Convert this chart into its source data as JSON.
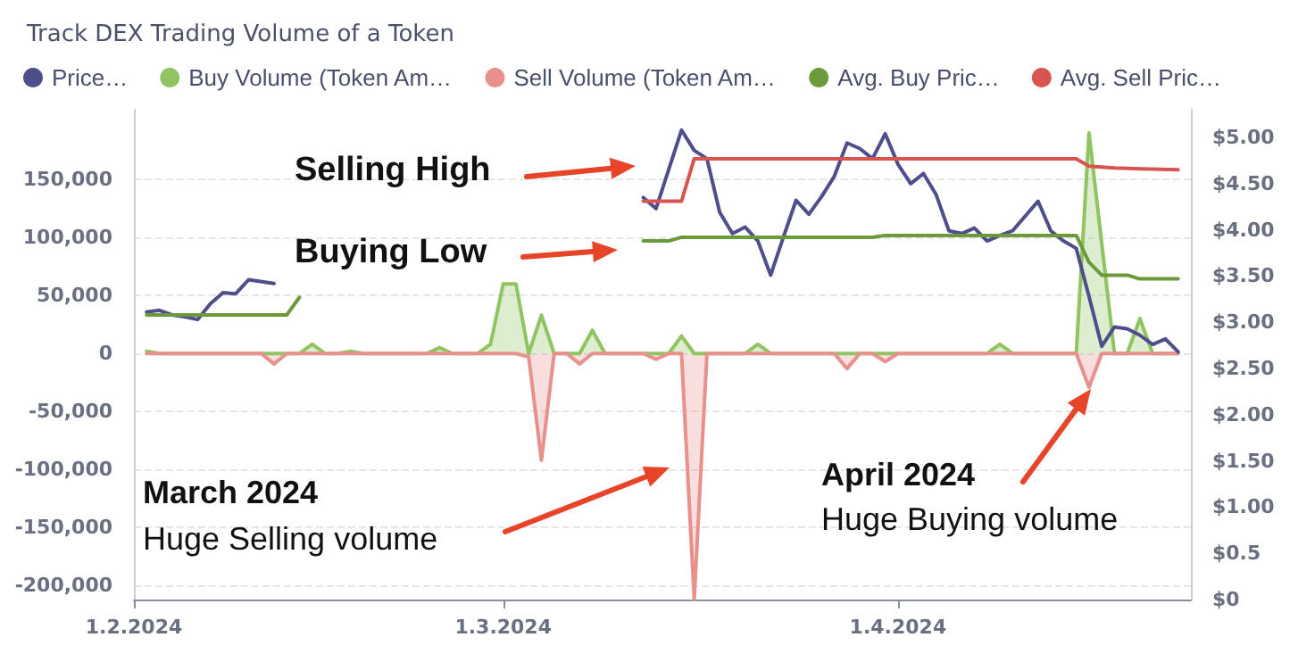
{
  "chart_data": {
    "type": "line",
    "title": "Track DEX Trading Volume of a Token",
    "xlim": [
      "2024-02-01",
      "2024-04-24"
    ],
    "xticks": [
      {
        "value": "2024-02-01",
        "label": "1.2.2024"
      },
      {
        "value": "2024-03-01",
        "label": "1.3.2024"
      },
      {
        "value": "2024-04-01",
        "label": "1.4.2024"
      }
    ],
    "ylim": [
      -212000,
      210000
    ],
    "yticks": [
      {
        "value": -200000,
        "label": "-200,000"
      },
      {
        "value": -150000,
        "label": "-150,000"
      },
      {
        "value": -100000,
        "label": "-100,000"
      },
      {
        "value": -50000,
        "label": "-50,000"
      },
      0,
      {
        "value": 50000,
        "label": "50,000"
      },
      {
        "value": 100000,
        "label": "100,000"
      },
      {
        "value": 150000,
        "label": "150,000"
      }
    ],
    "y2lim": [
      0,
      5.3
    ],
    "y2ticks": [
      {
        "value": 0,
        "label": "$0"
      },
      {
        "value": 0.5,
        "label": "$0.5"
      },
      {
        "value": 1,
        "label": "$1.00"
      },
      {
        "value": 1.5,
        "label": "$1.50"
      },
      {
        "value": 2,
        "label": "$2.00"
      },
      {
        "value": 2.5,
        "label": "$2.50"
      },
      {
        "value": 3,
        "label": "$3.00"
      },
      {
        "value": 3.5,
        "label": "$3.50"
      },
      {
        "value": 4,
        "label": "$4.00"
      },
      {
        "value": 4.5,
        "label": "$4.50"
      },
      {
        "value": 5,
        "label": "$5.00"
      }
    ],
    "grid": "y",
    "legend": "top left",
    "marker": "none",
    "line_style": "solid",
    "annotations": [
      "Selling High",
      "Buying Low",
      "March 2024",
      "Huge Selling volume",
      "April 2024",
      "Huge Buying volume"
    ],
    "series": [
      {
        "name": "Price…",
        "type": "line",
        "axis": "y2",
        "color": "#4e4e8c",
        "x": [
          "2024-02-02",
          "2024-02-03",
          "2024-02-04",
          "2024-02-05",
          "2024-02-06",
          "2024-02-07",
          "2024-02-08",
          "2024-02-09",
          "2024-02-10",
          "2024-02-12",
          "2024-02-20",
          "2024-03-12",
          "2024-03-13",
          "2024-03-15",
          "2024-03-16",
          "2024-03-17",
          "2024-03-18",
          "2024-03-19",
          "2024-03-20",
          "2024-03-21",
          "2024-03-22",
          "2024-03-23",
          "2024-03-24",
          "2024-03-25",
          "2024-03-26",
          "2024-03-27",
          "2024-03-28",
          "2024-03-29",
          "2024-03-30",
          "2024-03-31",
          "2024-04-01",
          "2024-04-02",
          "2024-04-03",
          "2024-04-04",
          "2024-04-05",
          "2024-04-06",
          "2024-04-07",
          "2024-04-08",
          "2024-04-09",
          "2024-04-10",
          "2024-04-12",
          "2024-04-13",
          "2024-04-14",
          "2024-04-15",
          "2024-04-16",
          "2024-04-17",
          "2024-04-18",
          "2024-04-19",
          "2024-04-20",
          "2024-04-21",
          "2024-04-22",
          "2024-04-23"
        ],
        "values": [
          3.11,
          3.13,
          3.08,
          3.06,
          3.03,
          3.2,
          3.32,
          3.31,
          3.46,
          3.42,
          null,
          4.35,
          4.23,
          5.08,
          4.86,
          4.77,
          4.19,
          3.96,
          4.03,
          3.88,
          3.51,
          3.92,
          4.32,
          4.17,
          4.36,
          4.58,
          4.94,
          4.88,
          4.77,
          5.04,
          4.71,
          4.5,
          4.61,
          4.38,
          3.99,
          3.96,
          4.02,
          3.88,
          3.94,
          3.99,
          4.31,
          3.99,
          3.88,
          3.8,
          3.28,
          2.74,
          2.95,
          2.93,
          2.86,
          2.76,
          2.82,
          2.68
        ]
      },
      {
        "name": "Buy Volume (Token Am…",
        "type": "area",
        "color": "#8fc461",
        "x": [
          "2024-02-02",
          "2024-02-03",
          "2024-02-14",
          "2024-02-15",
          "2024-02-16",
          "2024-02-17",
          "2024-02-18",
          "2024-02-19",
          "2024-02-24",
          "2024-02-25",
          "2024-02-26",
          "2024-02-28",
          "2024-02-29",
          "2024-03-01",
          "2024-03-02",
          "2024-03-03",
          "2024-03-04",
          "2024-03-05",
          "2024-03-07",
          "2024-03-08",
          "2024-03-09",
          "2024-03-14",
          "2024-03-15",
          "2024-03-16",
          "2024-03-20",
          "2024-03-21",
          "2024-03-22",
          "2024-04-08",
          "2024-04-09",
          "2024-04-10",
          "2024-04-15",
          "2024-04-16",
          "2024-04-17",
          "2024-04-18",
          "2024-04-19",
          "2024-04-20",
          "2024-04-21",
          "2024-04-23"
        ],
        "values": [
          2000,
          0,
          0,
          8000,
          0,
          0,
          2000,
          0,
          0,
          5000,
          0,
          0,
          8000,
          60000,
          60000,
          0,
          33000,
          0,
          0,
          20000,
          0,
          0,
          15000,
          0,
          0,
          8000,
          0,
          0,
          8000,
          0,
          0,
          190000,
          95000,
          0,
          0,
          30000,
          0,
          0
        ]
      },
      {
        "name": "Sell Volume (Token Am…",
        "type": "area",
        "color": "#e8918c",
        "x": [
          "2024-02-02",
          "2024-02-11",
          "2024-02-12",
          "2024-02-13",
          "2024-03-02",
          "2024-03-03",
          "2024-03-04",
          "2024-03-05",
          "2024-03-06",
          "2024-03-07",
          "2024-03-08",
          "2024-03-12",
          "2024-03-13",
          "2024-03-14",
          "2024-03-15",
          "2024-03-16",
          "2024-03-17",
          "2024-03-27",
          "2024-03-28",
          "2024-03-29",
          "2024-03-30",
          "2024-03-31",
          "2024-04-01",
          "2024-04-15",
          "2024-04-16",
          "2024-04-17",
          "2024-04-23"
        ],
        "values": [
          0,
          0,
          -9000,
          0,
          0,
          -3000,
          -92000,
          0,
          0,
          -9000,
          0,
          0,
          -5000,
          0,
          0,
          -212000,
          0,
          0,
          -13000,
          0,
          0,
          -7000,
          0,
          0,
          -29000,
          0,
          0
        ]
      },
      {
        "name": "Avg. Buy Pric…",
        "type": "line",
        "axis": "y2",
        "color": "#6a9a3a",
        "x": [
          "2024-02-02",
          "2024-02-13",
          "2024-02-14",
          "2024-02-20",
          "2024-03-12",
          "2024-03-14",
          "2024-03-15",
          "2024-03-30",
          "2024-03-31",
          "2024-04-15",
          "2024-04-16",
          "2024-04-17",
          "2024-04-19",
          "2024-04-20",
          "2024-04-23"
        ],
        "values": [
          3.08,
          3.08,
          3.27,
          null,
          3.88,
          3.88,
          3.92,
          3.92,
          3.94,
          3.94,
          3.65,
          3.51,
          3.51,
          3.47,
          3.47
        ]
      },
      {
        "name": "Avg. Sell Pric…",
        "type": "line",
        "axis": "y2",
        "color": "#d9534f",
        "x": [
          "2024-03-12",
          "2024-03-15",
          "2024-03-16",
          "2024-04-15",
          "2024-04-16",
          "2024-04-18",
          "2024-04-23"
        ],
        "values": [
          4.31,
          4.31,
          4.77,
          4.77,
          4.69,
          4.67,
          4.65
        ]
      }
    ]
  }
}
